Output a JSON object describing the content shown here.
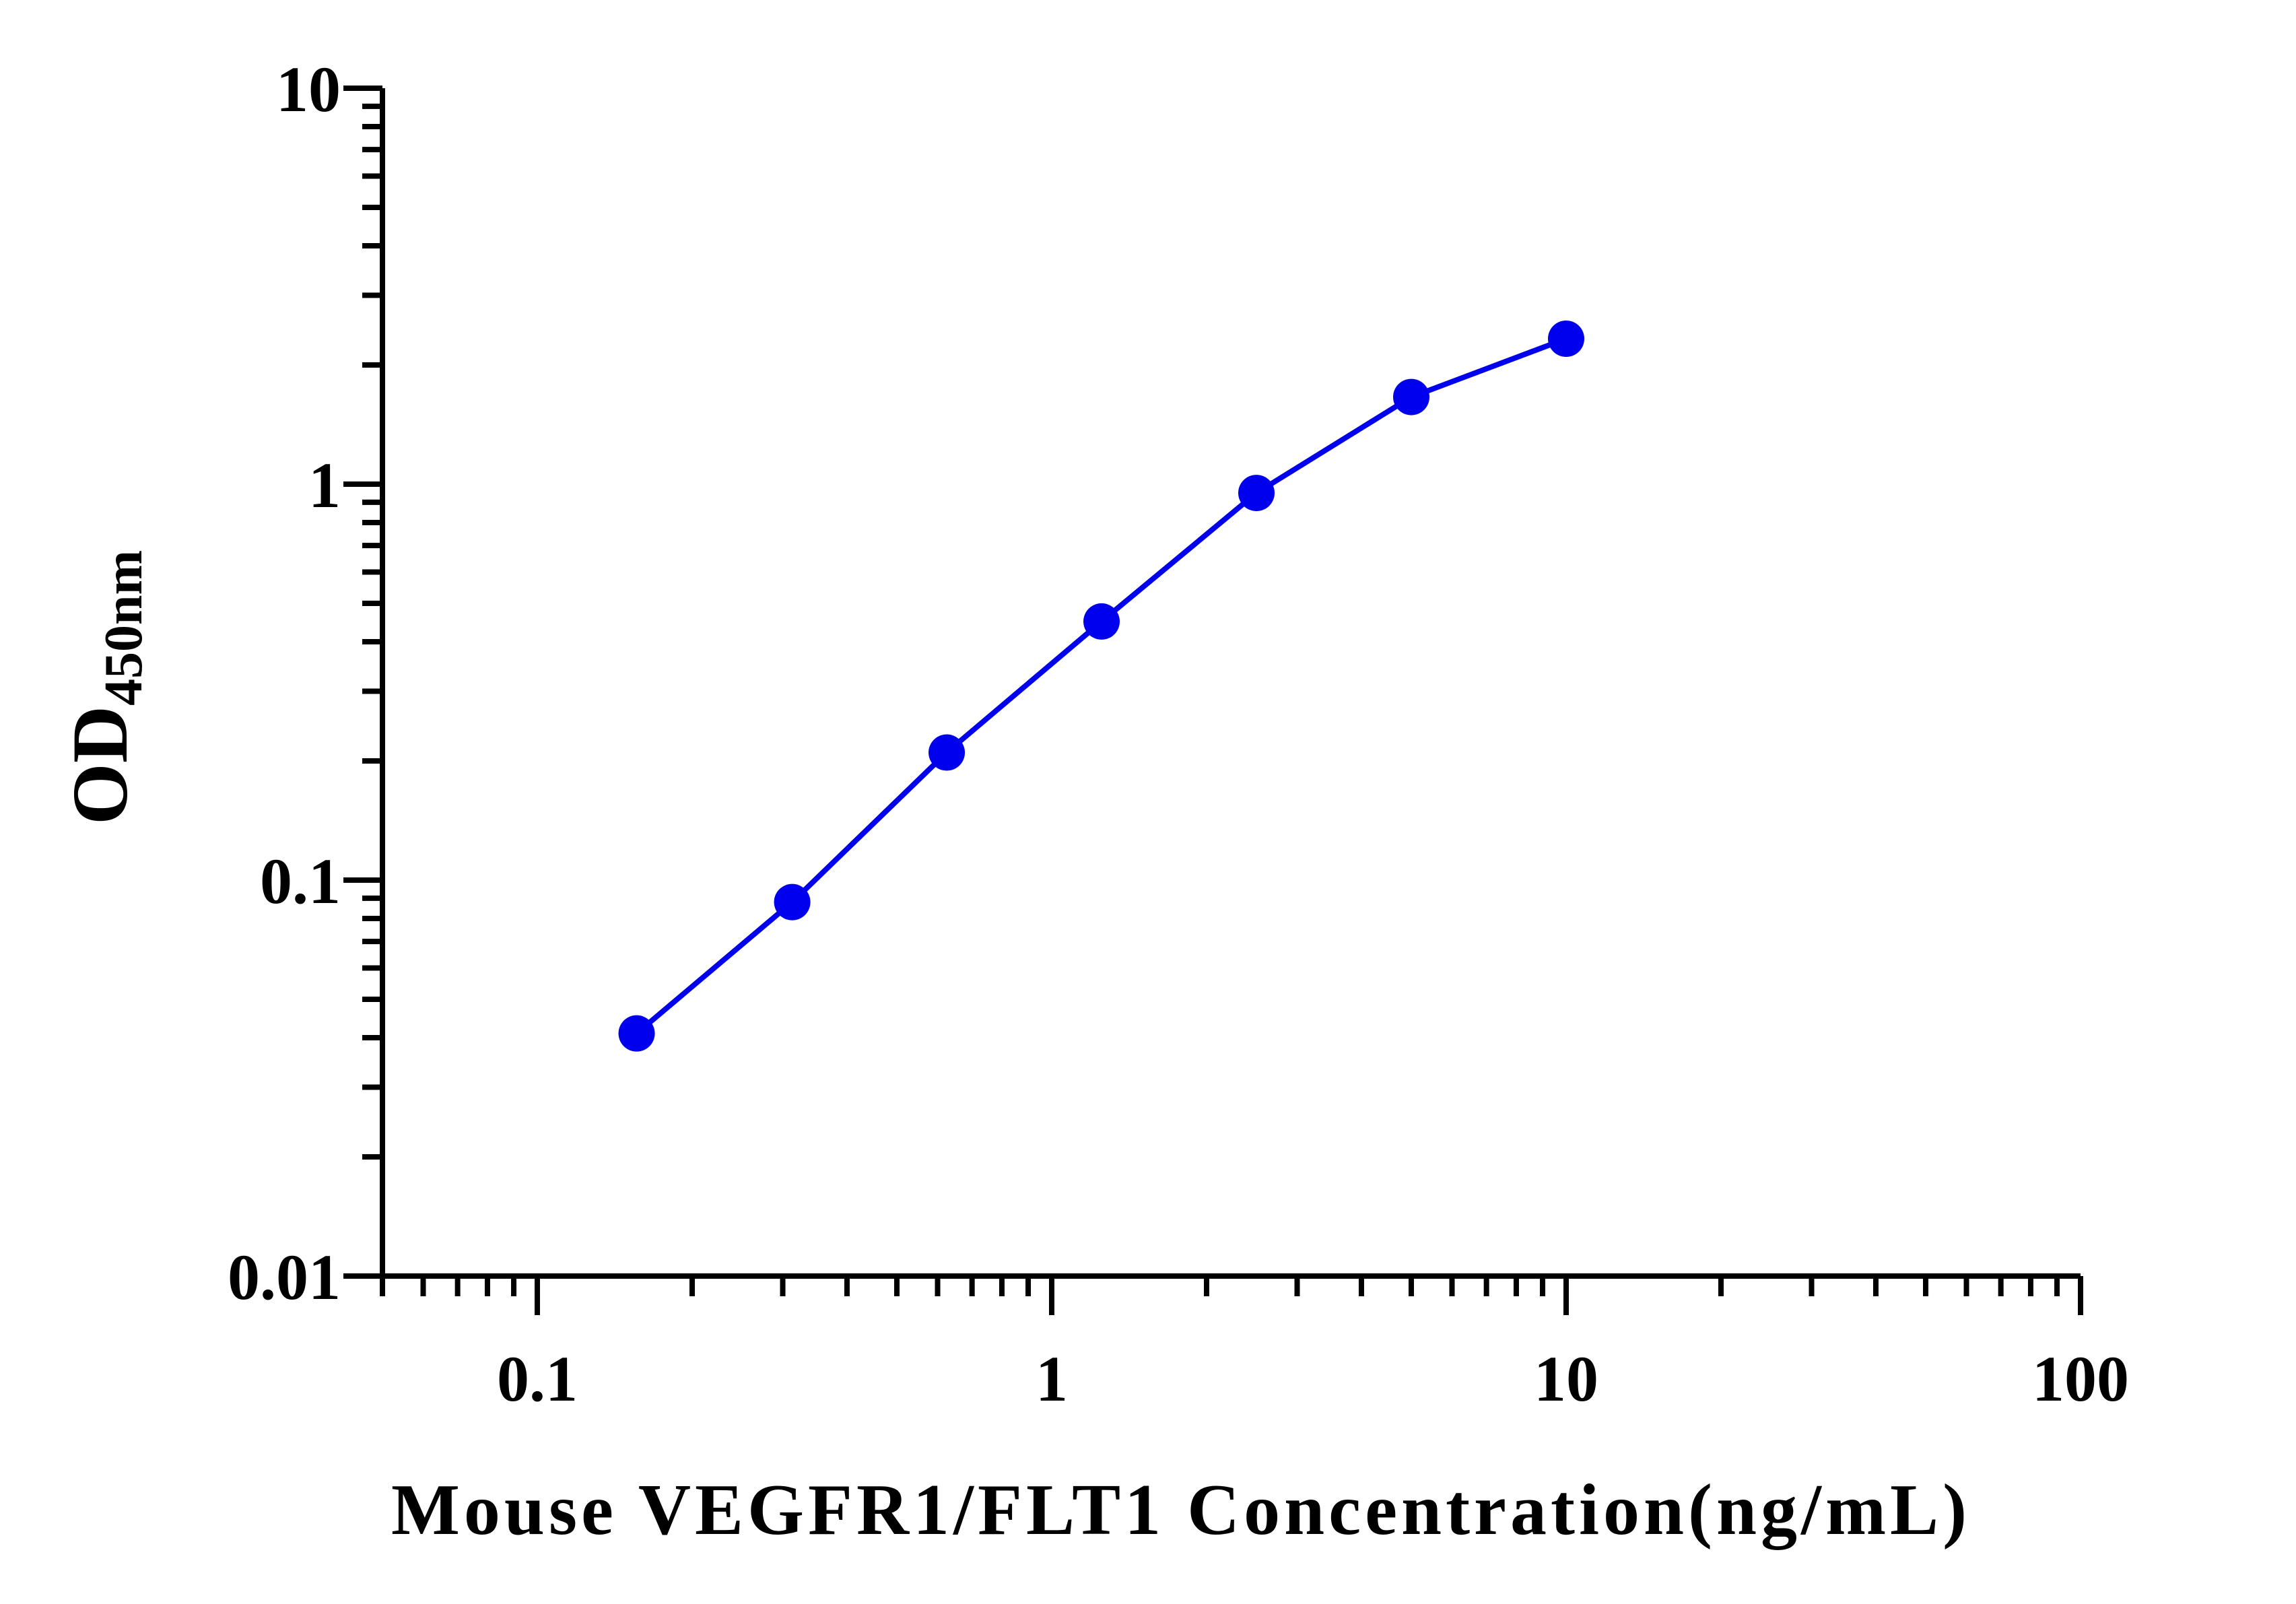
{
  "chart_data": {
    "type": "line",
    "title": "",
    "xlabel": "Mouse VEGFR1/FLT1 Concentration(ng/mL)",
    "ylabel": {
      "main": "OD",
      "subscript": "450nm"
    },
    "x_scale": "log",
    "y_scale": "log",
    "xlim": [
      0.05,
      100
    ],
    "ylim": [
      0.01,
      10
    ],
    "x_ticks": [
      {
        "value": 0.1,
        "label": "0.1"
      },
      {
        "value": 1,
        "label": "1"
      },
      {
        "value": 10,
        "label": "10"
      },
      {
        "value": 100,
        "label": "100"
      }
    ],
    "y_ticks": [
      {
        "value": 0.01,
        "label": "0.01"
      },
      {
        "value": 0.1,
        "label": "0.1"
      },
      {
        "value": 1,
        "label": "1"
      },
      {
        "value": 10,
        "label": "10"
      }
    ],
    "grid": false,
    "legend": "none",
    "series": [
      {
        "color": "#0000ee",
        "marker": "circle",
        "x": [
          0.156,
          0.313,
          0.625,
          1.25,
          2.5,
          5,
          10
        ],
        "y": [
          0.041,
          0.088,
          0.21,
          0.45,
          0.95,
          1.66,
          2.33
        ]
      }
    ]
  }
}
